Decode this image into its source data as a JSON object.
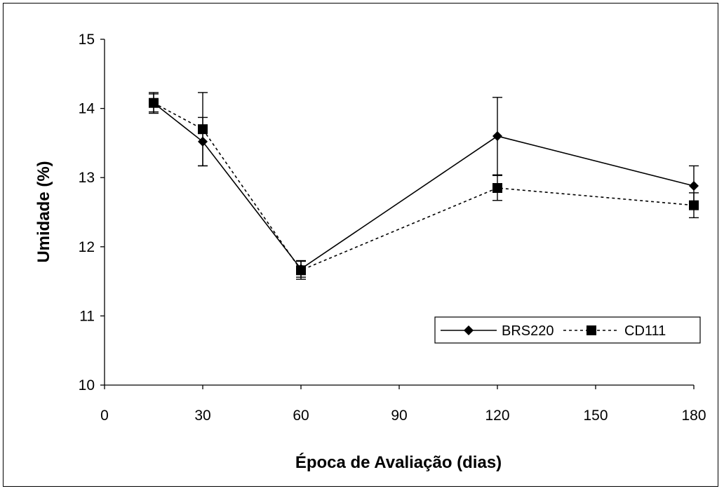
{
  "chart_data": {
    "type": "line",
    "title": "",
    "xlabel": "Época de Avaliação (dias)",
    "ylabel": "Umidade (%)",
    "xlim": [
      0,
      180
    ],
    "ylim": [
      10,
      15
    ],
    "xticks": [
      0,
      30,
      60,
      90,
      120,
      150,
      180
    ],
    "yticks": [
      10,
      11,
      12,
      13,
      14,
      15
    ],
    "xtick_labels": [
      "0",
      "30",
      "60",
      "90",
      "120",
      "150",
      "180"
    ],
    "ytick_labels": [
      "10",
      "11",
      "12",
      "13",
      "14",
      "15"
    ],
    "grid": false,
    "legend_position": "bottom-right",
    "series": [
      {
        "name": "BRS220",
        "marker": "diamond",
        "line_style": "solid",
        "color": "#000000",
        "x": [
          15,
          30,
          60,
          120,
          180
        ],
        "y": [
          14.08,
          13.52,
          11.68,
          13.6,
          12.88
        ],
        "error": [
          0.13,
          0.35,
          0.12,
          0.56,
          0.29
        ]
      },
      {
        "name": "CD111",
        "marker": "square",
        "line_style": "dashed",
        "color": "#000000",
        "x": [
          15,
          30,
          60,
          120,
          180
        ],
        "y": [
          14.08,
          13.7,
          11.66,
          12.85,
          12.6
        ],
        "error": [
          0.15,
          0.53,
          0.13,
          0.18,
          0.18
        ]
      }
    ]
  }
}
